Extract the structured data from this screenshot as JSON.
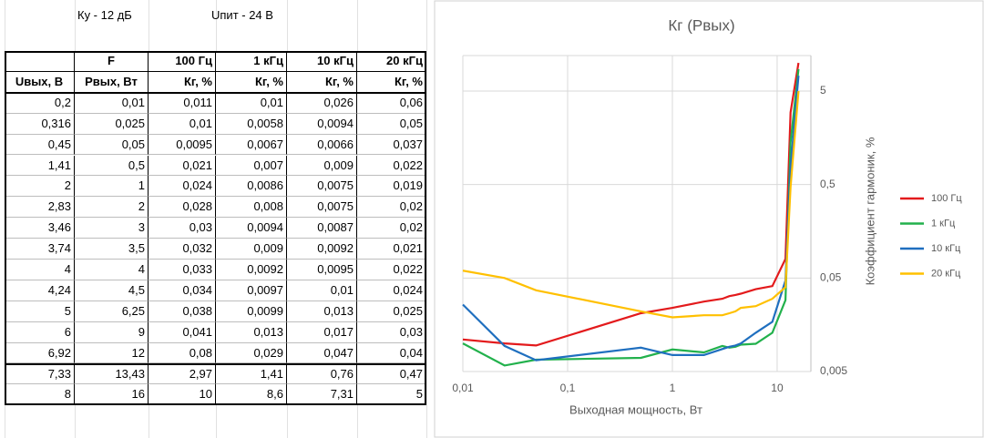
{
  "sheet": {
    "params": [
      "Ку - 12 дБ",
      "Uпит - 24 В"
    ],
    "table": {
      "header1": [
        "",
        "F",
        "100 Гц",
        "1 кГц",
        "10 кГц",
        "20 кГц"
      ],
      "header2": [
        "Uвых, В",
        "Рвых, Вт",
        "Кг, %",
        "Кг, %",
        "Кг, %",
        "Кг, %"
      ],
      "rows": [
        [
          "0,2",
          "0,01",
          "0,011",
          "0,01",
          "0,026",
          "0,06"
        ],
        [
          "0,316",
          "0,025",
          "0,01",
          "0,0058",
          "0,0094",
          "0,05"
        ],
        [
          "0,45",
          "0,05",
          "0,0095",
          "0,0067",
          "0,0066",
          "0,037"
        ],
        [
          "1,41",
          "0,5",
          "0,021",
          "0,007",
          "0,009",
          "0,022"
        ],
        [
          "2",
          "1",
          "0,024",
          "0,0086",
          "0,0075",
          "0,019"
        ],
        [
          "2,83",
          "2",
          "0,028",
          "0,008",
          "0,0075",
          "0,02"
        ],
        [
          "3,46",
          "3",
          "0,03",
          "0,0094",
          "0,0087",
          "0,02"
        ],
        [
          "3,74",
          "3,5",
          "0,032",
          "0,009",
          "0,0092",
          "0,021"
        ],
        [
          "4",
          "4",
          "0,033",
          "0,0092",
          "0,0095",
          "0,022"
        ],
        [
          "4,24",
          "4,5",
          "0,034",
          "0,0097",
          "0,01",
          "0,024"
        ],
        [
          "5",
          "6,25",
          "0,038",
          "0,0099",
          "0,013",
          "0,025"
        ],
        [
          "6",
          "9",
          "0,041",
          "0,013",
          "0,017",
          "0,03"
        ],
        [
          "6,92",
          "12",
          "0,08",
          "0,029",
          "0,047",
          "0,04"
        ],
        [
          "7,33",
          "13,43",
          "2,97",
          "1,41",
          "0,76",
          "0,47"
        ],
        [
          "8",
          "16",
          "10",
          "8,6",
          "7,31",
          "5"
        ]
      ]
    }
  },
  "chart_data": {
    "type": "line",
    "title": "Кг (Рвых)",
    "x_label": "Выходная мощность, Вт",
    "y_label": "Коэффициент гармоник, %",
    "log_x": true,
    "log_y": true,
    "grid": true,
    "x": [
      0.01,
      0.025,
      0.05,
      0.5,
      1,
      2,
      3,
      3.5,
      4,
      4.5,
      6.25,
      9,
      12,
      13.43,
      16
    ],
    "series": [
      {
        "name": "100 Гц",
        "color": "#e31a1c",
        "values": [
          0.011,
          0.01,
          0.0095,
          0.021,
          0.024,
          0.028,
          0.03,
          0.032,
          0.033,
          0.034,
          0.038,
          0.041,
          0.08,
          2.97,
          10
        ]
      },
      {
        "name": "1 кГц",
        "color": "#22b14c",
        "values": [
          0.01,
          0.0058,
          0.0067,
          0.007,
          0.0086,
          0.008,
          0.0094,
          0.009,
          0.0092,
          0.0097,
          0.0099,
          0.013,
          0.029,
          1.41,
          8.6
        ]
      },
      {
        "name": "10 кГц",
        "color": "#1f6fbf",
        "values": [
          0.026,
          0.0094,
          0.0066,
          0.009,
          0.0075,
          0.0075,
          0.0087,
          0.0092,
          0.0095,
          0.01,
          0.013,
          0.017,
          0.047,
          0.76,
          7.31
        ]
      },
      {
        "name": "20 кГц",
        "color": "#ffc000",
        "values": [
          0.06,
          0.05,
          0.037,
          0.022,
          0.019,
          0.02,
          0.02,
          0.021,
          0.022,
          0.024,
          0.025,
          0.03,
          0.04,
          0.47,
          5
        ]
      }
    ],
    "xlim": [
      0.01,
      21
    ],
    "ylim": [
      0.005,
      12
    ],
    "xticks": [
      {
        "value": 0.01,
        "label": "0,01"
      },
      {
        "value": 0.1,
        "label": "0,1"
      },
      1,
      10
    ],
    "yticks": [
      {
        "value": 0.005,
        "label": "0,005"
      },
      {
        "value": 0.05,
        "label": "0,05"
      },
      {
        "value": 0.5,
        "label": "0,5"
      },
      5
    ],
    "legend": "right"
  }
}
